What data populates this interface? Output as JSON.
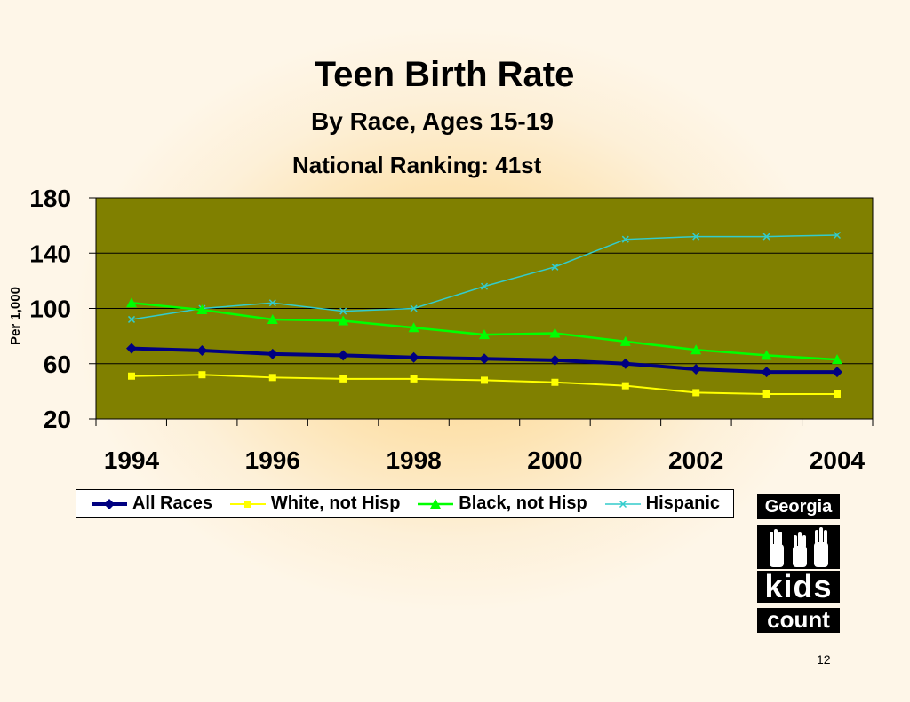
{
  "title": "Teen Birth Rate",
  "subtitle": "By Race, Ages 15-19",
  "ranking": "National Ranking: 41st",
  "logo": {
    "line1": "Georgia",
    "line2": "kids",
    "line3": "count"
  },
  "page_number": "12",
  "chart_data": {
    "type": "line",
    "ylabel": "Per 1,000",
    "xlabel": "",
    "ylim": [
      20,
      180
    ],
    "yticks": [
      "20",
      "60",
      "100",
      "140",
      "180"
    ],
    "xtick_labels": [
      "1994",
      "1996",
      "1998",
      "2000",
      "2002",
      "2004"
    ],
    "x": [
      1994,
      1995,
      1996,
      1997,
      1998,
      1999,
      2000,
      2001,
      2002,
      2003,
      2004
    ],
    "grid": true,
    "plot_background": "#808000",
    "legend_position": "bottom",
    "series": [
      {
        "name": "All Races",
        "color": "#000080",
        "marker": "diamond",
        "values": [
          71,
          69.5,
          67,
          66,
          64.5,
          63.5,
          62.5,
          60,
          56,
          54,
          54
        ]
      },
      {
        "name": "White, not Hisp",
        "color": "#ffff00",
        "marker": "square",
        "values": [
          51,
          52,
          50,
          49,
          49,
          48,
          46.5,
          44,
          39,
          38,
          38
        ]
      },
      {
        "name": "Black, not Hisp",
        "color": "#00ff00",
        "marker": "triangle",
        "values": [
          104,
          99,
          92,
          91,
          86,
          81,
          82,
          76,
          70,
          66,
          63
        ]
      },
      {
        "name": "Hispanic",
        "color": "#33cccc",
        "marker": "x",
        "values": [
          92,
          100,
          104,
          98,
          100,
          116,
          130,
          150,
          152,
          152,
          153
        ]
      }
    ]
  }
}
